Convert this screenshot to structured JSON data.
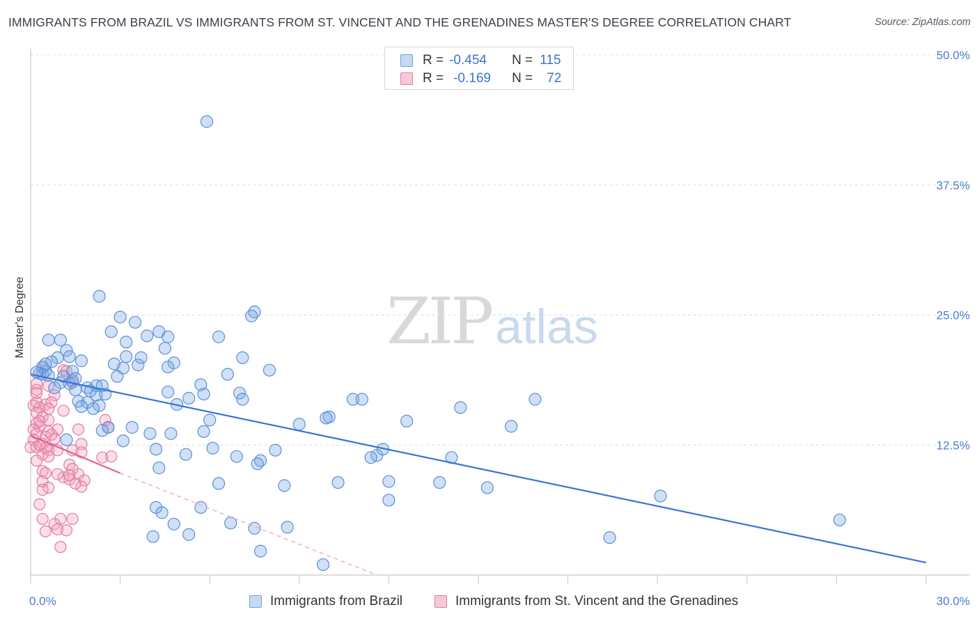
{
  "title": "IMMIGRANTS FROM BRAZIL VS IMMIGRANTS FROM ST. VINCENT AND THE GRENADINES MASTER'S DEGREE CORRELATION CHART",
  "source": "Source: ZipAtlas.com",
  "watermark": {
    "zip": "ZIP",
    "atlas": "atlas"
  },
  "legend": {
    "rows": [
      {
        "r_label": "R =",
        "r_value": "-0.454",
        "n_label": "N =",
        "n_value": "115",
        "color": "#6b9de0",
        "fill": "#c5d9f3"
      },
      {
        "r_label": "R =",
        "r_value": "-0.169",
        "n_label": "N =",
        "n_value": "72",
        "color": "#e07aa0",
        "fill": "#f6c9d9"
      }
    ]
  },
  "chart_data": {
    "type": "scatter",
    "title": "IMMIGRANTS FROM BRAZIL VS IMMIGRANTS FROM ST. VINCENT AND THE GRENADINES MASTER'S DEGREE CORRELATION CHART",
    "xlabel": "",
    "ylabel": "Master's Degree",
    "xlim": [
      0,
      30
    ],
    "ylim": [
      0,
      50
    ],
    "x_tick_labels": [
      "0.0%",
      "30.0%"
    ],
    "y_ticks": [
      12.5,
      25.0,
      37.5,
      50.0
    ],
    "y_tick_labels": [
      "12.5%",
      "25.0%",
      "37.5%",
      "50.0%"
    ],
    "grid": true,
    "legend_position": "top-center",
    "series": [
      {
        "name": "Immigrants from Brazil",
        "color": "#5b8fd8",
        "fill": "rgba(120,165,225,0.35)",
        "trend": {
          "x": [
            0,
            30
          ],
          "y": [
            19.3,
            1.2
          ],
          "style": "solid"
        },
        "points": [
          [
            5.9,
            43.6
          ],
          [
            2.3,
            26.8
          ],
          [
            7.5,
            25.3
          ],
          [
            7.4,
            24.9
          ],
          [
            3.0,
            24.8
          ],
          [
            3.5,
            24.3
          ],
          [
            2.7,
            23.4
          ],
          [
            4.3,
            23.4
          ],
          [
            3.9,
            23.0
          ],
          [
            0.6,
            22.6
          ],
          [
            1.0,
            22.6
          ],
          [
            4.6,
            22.9
          ],
          [
            6.3,
            22.9
          ],
          [
            3.2,
            22.4
          ],
          [
            1.2,
            21.6
          ],
          [
            4.5,
            21.8
          ],
          [
            3.2,
            21.0
          ],
          [
            1.3,
            21.0
          ],
          [
            0.9,
            20.9
          ],
          [
            7.1,
            20.9
          ],
          [
            3.7,
            20.9
          ],
          [
            1.7,
            20.6
          ],
          [
            0.7,
            20.5
          ],
          [
            4.8,
            20.4
          ],
          [
            2.8,
            20.3
          ],
          [
            3.6,
            20.2
          ],
          [
            0.4,
            20.0
          ],
          [
            0.5,
            19.6
          ],
          [
            1.4,
            19.6
          ],
          [
            8.0,
            19.7
          ],
          [
            4.6,
            20.0
          ],
          [
            0.3,
            19.4
          ],
          [
            0.4,
            19.3
          ],
          [
            0.6,
            19.2
          ],
          [
            6.6,
            19.3
          ],
          [
            1.1,
            19.1
          ],
          [
            2.9,
            19.1
          ],
          [
            1.4,
            18.7
          ],
          [
            1.0,
            18.5
          ],
          [
            1.3,
            18.4
          ],
          [
            2.2,
            18.2
          ],
          [
            2.4,
            18.2
          ],
          [
            1.9,
            18.0
          ],
          [
            5.7,
            18.3
          ],
          [
            1.5,
            17.8
          ],
          [
            2.0,
            17.7
          ],
          [
            4.6,
            17.6
          ],
          [
            7.0,
            17.5
          ],
          [
            5.8,
            17.4
          ],
          [
            2.5,
            17.4
          ],
          [
            2.2,
            17.3
          ],
          [
            5.3,
            17.0
          ],
          [
            7.1,
            16.9
          ],
          [
            10.8,
            16.9
          ],
          [
            11.1,
            16.9
          ],
          [
            16.9,
            16.9
          ],
          [
            1.6,
            16.7
          ],
          [
            1.9,
            16.6
          ],
          [
            4.9,
            16.4
          ],
          [
            2.3,
            16.3
          ],
          [
            1.7,
            16.2
          ],
          [
            14.4,
            16.1
          ],
          [
            10.0,
            15.2
          ],
          [
            9.9,
            15.1
          ],
          [
            6.0,
            14.9
          ],
          [
            12.6,
            14.8
          ],
          [
            9.0,
            14.5
          ],
          [
            16.1,
            14.3
          ],
          [
            2.6,
            14.2
          ],
          [
            3.4,
            14.2
          ],
          [
            2.4,
            13.9
          ],
          [
            5.8,
            13.8
          ],
          [
            4.0,
            13.6
          ],
          [
            4.7,
            13.6
          ],
          [
            3.1,
            12.9
          ],
          [
            1.2,
            13.0
          ],
          [
            6.1,
            12.2
          ],
          [
            4.2,
            12.1
          ],
          [
            8.2,
            12.0
          ],
          [
            11.8,
            12.1
          ],
          [
            5.2,
            11.6
          ],
          [
            6.9,
            11.4
          ],
          [
            11.6,
            11.5
          ],
          [
            11.4,
            11.3
          ],
          [
            14.1,
            11.3
          ],
          [
            7.7,
            11.0
          ],
          [
            7.6,
            10.7
          ],
          [
            4.3,
            10.3
          ],
          [
            6.3,
            8.8
          ],
          [
            8.5,
            8.6
          ],
          [
            10.3,
            8.9
          ],
          [
            12.0,
            9.0
          ],
          [
            13.7,
            8.9
          ],
          [
            15.3,
            8.4
          ],
          [
            12.0,
            7.2
          ],
          [
            21.1,
            7.6
          ],
          [
            4.2,
            6.5
          ],
          [
            4.4,
            6.0
          ],
          [
            5.7,
            6.5
          ],
          [
            27.1,
            5.3
          ],
          [
            4.8,
            4.9
          ],
          [
            6.7,
            5.0
          ],
          [
            7.5,
            4.5
          ],
          [
            8.6,
            4.6
          ],
          [
            4.1,
            3.7
          ],
          [
            5.3,
            3.9
          ],
          [
            19.4,
            3.6
          ],
          [
            7.7,
            2.3
          ],
          [
            9.8,
            1.0
          ],
          [
            0.2,
            19.5
          ],
          [
            0.5,
            20.3
          ],
          [
            1.5,
            18.9
          ],
          [
            2.1,
            16.0
          ],
          [
            3.1,
            19.9
          ],
          [
            0.8,
            18.0
          ]
        ]
      },
      {
        "name": "Immigrants from St. Vincent and the Grenadines",
        "color": "#e07aa0",
        "fill": "rgba(240,160,190,0.35)",
        "trend": {
          "x": [
            0,
            3
          ],
          "y": [
            13.4,
            9.8
          ],
          "style": "solid",
          "extension": {
            "x": [
              3,
              11.6
            ],
            "y": [
              9.8,
              0
            ],
            "style": "dashed"
          }
        },
        "points": [
          [
            0.4,
            20.0
          ],
          [
            1.1,
            19.7
          ],
          [
            1.2,
            19.6
          ],
          [
            0.2,
            18.4
          ],
          [
            0.6,
            18.2
          ],
          [
            1.4,
            18.5
          ],
          [
            0.2,
            17.8
          ],
          [
            0.8,
            17.3
          ],
          [
            0.2,
            16.6
          ],
          [
            0.5,
            16.4
          ],
          [
            0.7,
            16.6
          ],
          [
            0.1,
            16.3
          ],
          [
            0.3,
            16.1
          ],
          [
            0.6,
            16.0
          ],
          [
            1.1,
            15.8
          ],
          [
            0.2,
            15.6
          ],
          [
            0.4,
            15.2
          ],
          [
            0.6,
            14.9
          ],
          [
            2.5,
            14.9
          ],
          [
            0.2,
            14.6
          ],
          [
            0.3,
            14.3
          ],
          [
            0.9,
            14.0
          ],
          [
            0.1,
            14.0
          ],
          [
            1.6,
            14.0
          ],
          [
            2.6,
            14.2
          ],
          [
            0.2,
            13.6
          ],
          [
            0.6,
            13.8
          ],
          [
            0.5,
            13.3
          ],
          [
            0.8,
            13.1
          ],
          [
            0.1,
            13.0
          ],
          [
            1.7,
            12.6
          ],
          [
            0.4,
            12.6
          ],
          [
            0.2,
            12.3
          ],
          [
            0.5,
            12.2
          ],
          [
            0.6,
            12.0
          ],
          [
            0.9,
            12.0
          ],
          [
            1.4,
            12.0
          ],
          [
            1.7,
            11.8
          ],
          [
            0.4,
            11.6
          ],
          [
            0.6,
            11.4
          ],
          [
            2.4,
            11.3
          ],
          [
            2.7,
            11.4
          ],
          [
            0.2,
            11.0
          ],
          [
            1.3,
            10.6
          ],
          [
            0.4,
            10.0
          ],
          [
            0.5,
            9.8
          ],
          [
            1.4,
            10.2
          ],
          [
            1.6,
            9.7
          ],
          [
            1.1,
            9.4
          ],
          [
            1.3,
            9.2
          ],
          [
            1.8,
            9.1
          ],
          [
            0.4,
            9.0
          ],
          [
            0.6,
            8.4
          ],
          [
            0.4,
            8.2
          ],
          [
            1.7,
            8.5
          ],
          [
            0.3,
            6.8
          ],
          [
            0.4,
            5.4
          ],
          [
            1.0,
            5.4
          ],
          [
            1.4,
            5.4
          ],
          [
            0.8,
            4.9
          ],
          [
            0.9,
            4.4
          ],
          [
            1.2,
            4.3
          ],
          [
            0.5,
            4.2
          ],
          [
            1.0,
            2.7
          ],
          [
            0.0,
            12.3
          ],
          [
            0.2,
            17.5
          ],
          [
            0.3,
            12.5
          ],
          [
            0.7,
            13.5
          ],
          [
            0.9,
            9.7
          ],
          [
            1.3,
            9.6
          ],
          [
            0.3,
            14.8
          ],
          [
            1.5,
            8.8
          ]
        ]
      }
    ]
  },
  "bottom_legend": [
    {
      "label": "Immigrants from Brazil",
      "color": "#6b9de0",
      "fill": "#c5d9f3"
    },
    {
      "label": "Immigrants from St. Vincent and the Grenadines",
      "color": "#e07aa0",
      "fill": "#f6c9d9"
    }
  ]
}
